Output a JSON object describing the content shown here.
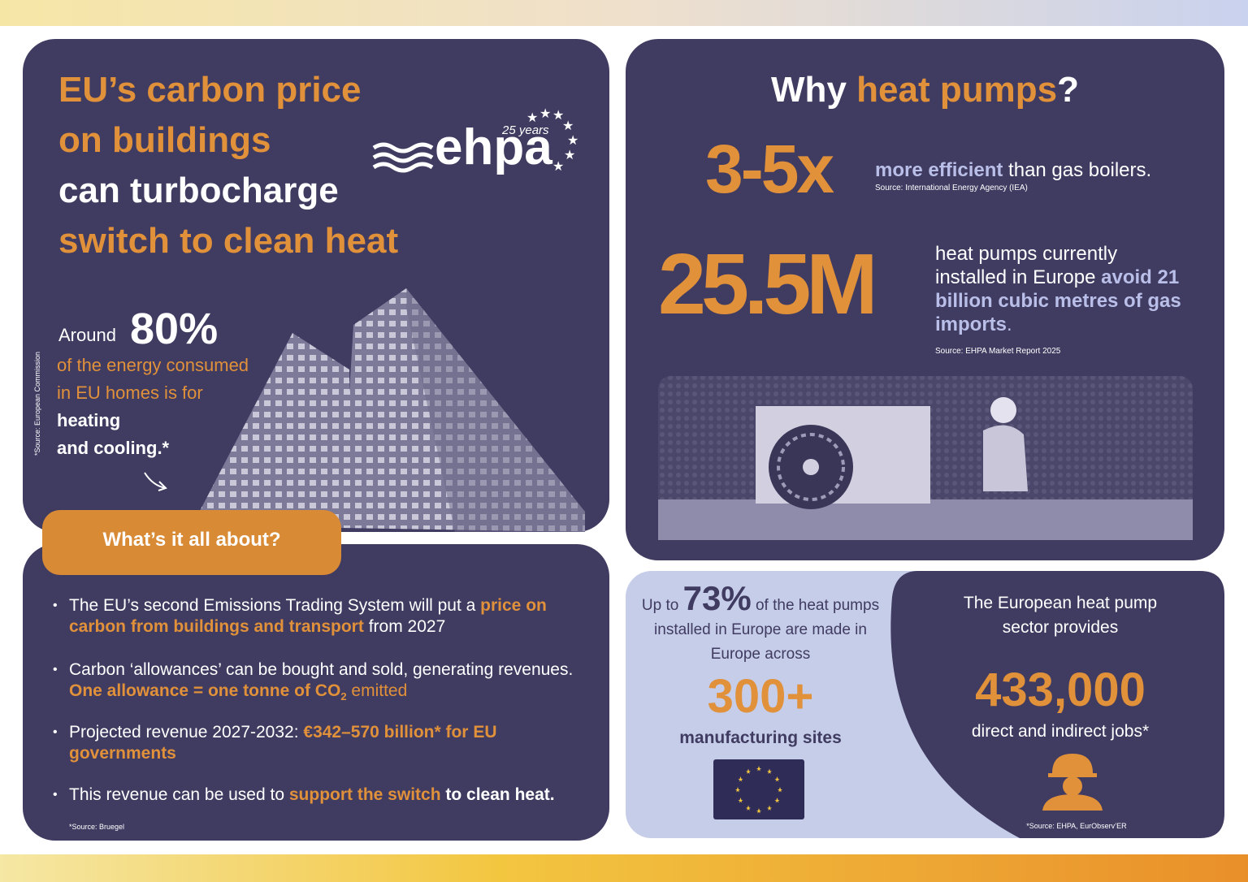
{
  "carbon_price": {
    "title": [
      "EU’s carbon price",
      "on buildings",
      "can turbocharge",
      "switch to clean heat"
    ],
    "logo": {
      "name": "ehpa",
      "years": "25 years"
    },
    "stat": {
      "lead": "Around",
      "value": "80%",
      "text": [
        "of the energy consumed",
        "in EU homes is for"
      ],
      "emphasis": [
        "heating",
        "and cooling.*"
      ]
    },
    "source": "*Source: European Commission"
  },
  "about": {
    "heading": "What’s it all about?",
    "bullets": [
      [
        "The EU’s second Emissions Trading System will put a",
        "price on carbon from buildings and transport",
        "from 2027"
      ],
      [
        "Carbon ‘allowances’ can be bought and sold, generating revenues.",
        "One allowance = one tonne of CO",
        "2",
        "emitted"
      ],
      [
        "Projected revenue 2027-2032:",
        "€342–570 billion* for EU governments"
      ],
      [
        "This revenue can be used to",
        "support the switch",
        "to clean heat."
      ]
    ],
    "source": "*Source: Bruegel"
  },
  "why": {
    "title": [
      "Why",
      "heat pumps",
      "?"
    ],
    "efficiency": {
      "value": "3-5x",
      "highlight": "more efficient",
      "text": "than gas boilers.",
      "source": "Source: International Energy Agency (IEA)"
    },
    "installed": {
      "value": "25.5M",
      "text": "heat pumps currently installed in Europe",
      "highlight": "avoid 21 billion cubic metres of gas imports",
      "end": ".",
      "source": "Source: EHPA Market Report 2025"
    }
  },
  "manufacturing": {
    "lead": "Up to",
    "value": "73%",
    "text": "of the heat pumps installed in Europe are made in Europe across",
    "sites": "300+",
    "sites_label": "manufacturing sites"
  },
  "jobs": {
    "intro": "The European heat pump sector provides",
    "value": "433,000",
    "label": "direct and indirect jobs*",
    "source": "*Source: EHPA, EurObserv’ER"
  }
}
